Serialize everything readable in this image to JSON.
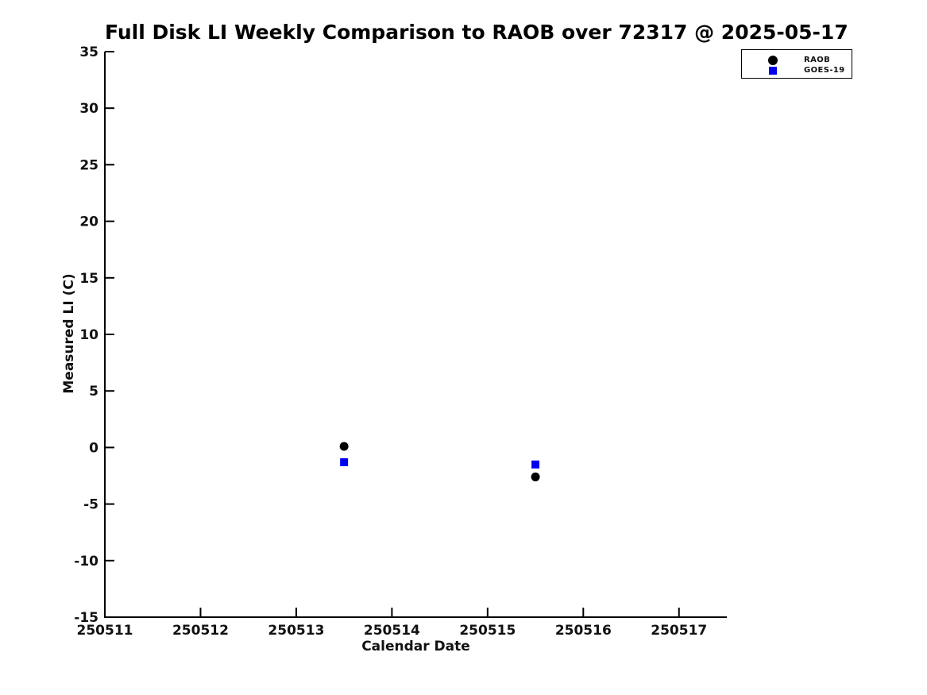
{
  "title": "Full Disk LI Weekly Comparison to RAOB over 72317 @ 2025-05-17",
  "colors": {
    "raob_marker": "#000000",
    "goes19_marker": "#0000ee",
    "axis": "#000000",
    "background": "#ffffff"
  },
  "chart_data": {
    "type": "scatter",
    "title": "Full Disk LI Weekly Comparison to RAOB over 72317 @ 2025-05-17",
    "xlabel": "Calendar Date",
    "ylabel": "Measured LI (C)",
    "xlim": [
      250511,
      250517.5
    ],
    "ylim": [
      -15,
      35
    ],
    "xticks": [
      250511,
      250512,
      250513,
      250514,
      250515,
      250516,
      250517
    ],
    "yticks": [
      -15,
      -10,
      -5,
      0,
      5,
      10,
      15,
      20,
      25,
      30,
      35
    ],
    "grid": false,
    "legend_position": "top-right-outside",
    "series": [
      {
        "name": "RAOB",
        "marker": "circle",
        "color": "#000000",
        "points": [
          {
            "x": 250513.5,
            "y": 0.1
          },
          {
            "x": 250515.5,
            "y": -2.6
          }
        ]
      },
      {
        "name": "GOES-19",
        "marker": "square",
        "color": "#0000ee",
        "points": [
          {
            "x": 250513.5,
            "y": -1.3
          },
          {
            "x": 250515.5,
            "y": -1.5
          }
        ]
      }
    ]
  }
}
